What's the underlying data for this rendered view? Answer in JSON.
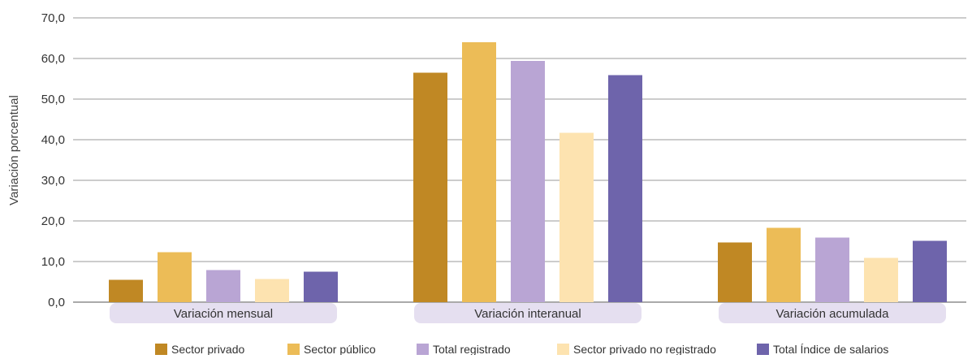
{
  "chart_data": {
    "type": "bar",
    "ylabel": "Variación porcentual",
    "ylim": [
      0,
      70
    ],
    "yticks": [
      "0,0",
      "10,0",
      "20,0",
      "30,0",
      "40,0",
      "50,0",
      "60,0",
      "70,0"
    ],
    "grid": true,
    "legend_position": "bottom",
    "categories": [
      "Variación mensual",
      "Variación interanual",
      "Variación acumulada"
    ],
    "series": [
      {
        "name": "Sector privado",
        "color": "#c08824",
        "values": [
          5.5,
          56.5,
          14.7
        ]
      },
      {
        "name": "Sector público",
        "color": "#ecbc57",
        "values": [
          12.3,
          64.0,
          18.3
        ]
      },
      {
        "name": "Total registrado",
        "color": "#b9a5d4",
        "values": [
          7.9,
          59.4,
          15.9
        ]
      },
      {
        "name": "Sector privado no registrado",
        "color": "#fde3b0",
        "values": [
          5.7,
          41.7,
          10.9
        ]
      },
      {
        "name": "Total Índice de salarios",
        "color": "#6e64ab",
        "values": [
          7.5,
          55.9,
          15.1
        ]
      }
    ]
  }
}
